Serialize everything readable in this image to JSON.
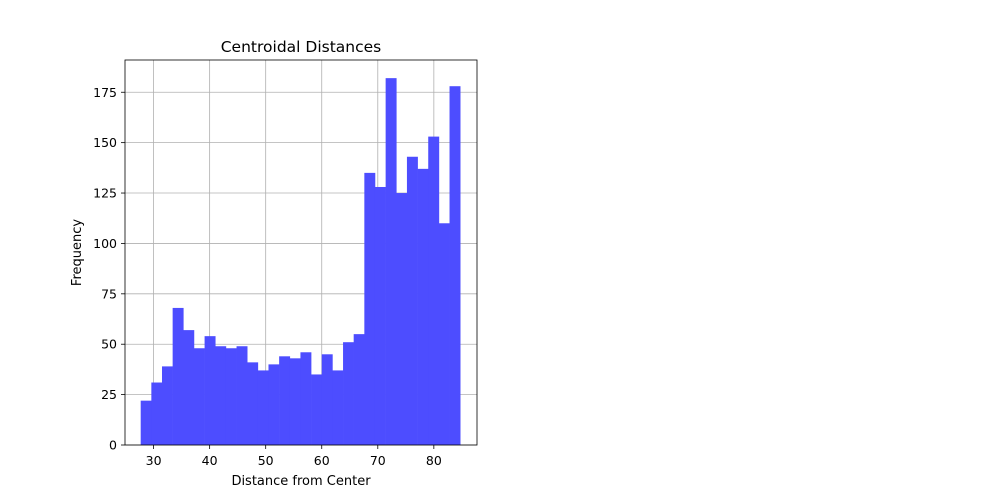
{
  "chart_data": {
    "type": "bar",
    "title": "Centroidal Distances",
    "xlabel": "Distance from Center",
    "ylabel": "Frequency",
    "bar_color": "#4d4dff",
    "grid": true,
    "xlim": [
      24.9,
      87.7
    ],
    "ylim": [
      0,
      191
    ],
    "x_ticks": [
      30,
      40,
      50,
      60,
      70,
      80
    ],
    "y_ticks": [
      0,
      25,
      50,
      75,
      100,
      125,
      150,
      175
    ],
    "bin_start": 27.7,
    "bin_width": 1.9,
    "values": [
      22,
      31,
      39,
      68,
      57,
      48,
      54,
      49,
      48,
      49,
      41,
      37,
      40,
      44,
      43,
      46,
      35,
      45,
      37,
      51,
      55,
      135,
      128,
      182,
      125,
      143,
      137,
      153,
      110,
      178
    ]
  }
}
